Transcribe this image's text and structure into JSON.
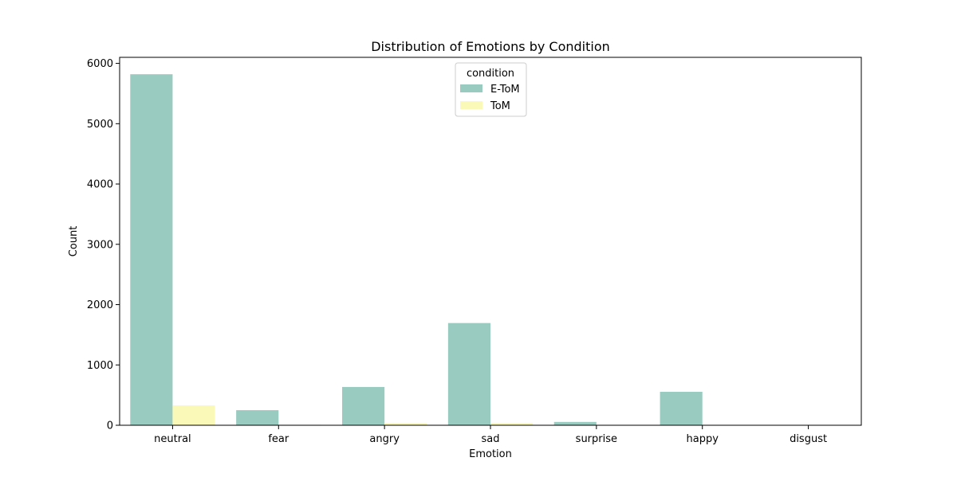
{
  "chart_data": {
    "type": "bar",
    "title": "Distribution of Emotions by Condition",
    "xlabel": "Emotion",
    "ylabel": "Count",
    "categories": [
      "neutral",
      "fear",
      "angry",
      "sad",
      "surprise",
      "happy",
      "disgust"
    ],
    "series": [
      {
        "name": "E-ToM",
        "color": "#99cbc1",
        "values": [
          5820,
          250,
          635,
          1695,
          55,
          555,
          0
        ]
      },
      {
        "name": "ToM",
        "color": "#fbf9b7",
        "values": [
          330,
          10,
          40,
          40,
          0,
          5,
          0
        ]
      }
    ],
    "ylim": [
      0,
      6100
    ],
    "yticks": [
      0,
      1000,
      2000,
      3000,
      4000,
      5000,
      6000
    ],
    "grid": false,
    "legend": {
      "title": "condition",
      "placement": "upper-center"
    }
  }
}
